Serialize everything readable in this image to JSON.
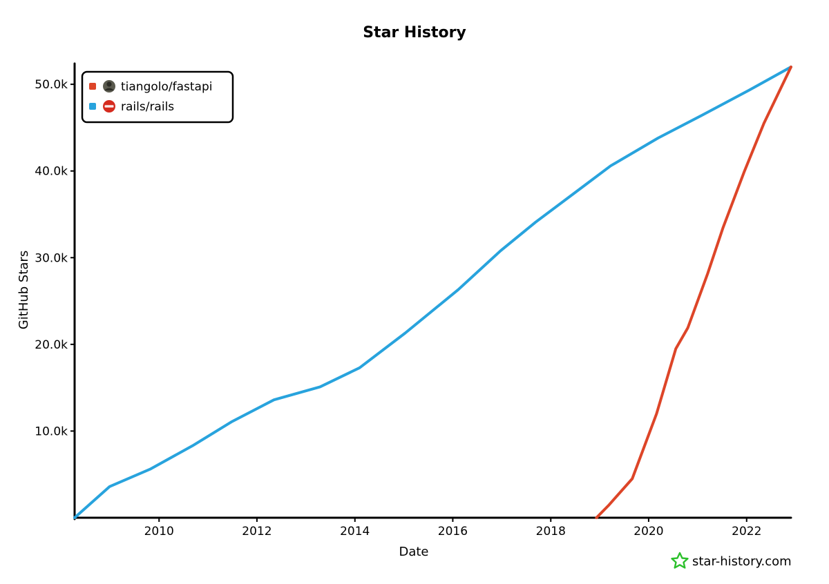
{
  "chart_data": {
    "type": "line",
    "title": "Star History",
    "xlabel": "Date",
    "ylabel": "GitHub Stars",
    "xlim": [
      "2008-04-11",
      "2022-11-28"
    ],
    "ylim": [
      0,
      52000
    ],
    "x_ticks": [
      "2010",
      "2012",
      "2014",
      "2016",
      "2018",
      "2020",
      "2022"
    ],
    "y_ticks": [
      "10.0k",
      "20.0k",
      "30.0k",
      "40.0k",
      "50.0k"
    ],
    "legend_position": "top-left",
    "grid": false,
    "series": [
      {
        "name": "tiangolo/fastapi",
        "color": "#dd4528",
        "icon": "avatar-icon",
        "points": [
          [
            "2018-12-08",
            0
          ],
          [
            "2019-03-07",
            1400
          ],
          [
            "2019-09-01",
            4500
          ],
          [
            "2020-02-29",
            12000
          ],
          [
            "2020-07-22",
            19500
          ],
          [
            "2020-10-19",
            21900
          ],
          [
            "2021-03-17",
            28200
          ],
          [
            "2021-07-10",
            33500
          ],
          [
            "2021-12-16",
            40000
          ],
          [
            "2022-05-10",
            45500
          ],
          [
            "2022-11-28",
            52000
          ]
        ]
      },
      {
        "name": "rails/rails",
        "color": "#28a3dd",
        "icon": "rails-logo-icon",
        "points": [
          [
            "2008-04-11",
            0
          ],
          [
            "2008-12-29",
            3600
          ],
          [
            "2009-10-26",
            5600
          ],
          [
            "2010-09-07",
            8300
          ],
          [
            "2011-06-30",
            11100
          ],
          [
            "2012-05-07",
            13600
          ],
          [
            "2013-04-16",
            15100
          ],
          [
            "2014-02-05",
            17300
          ],
          [
            "2015-01-11",
            21300
          ],
          [
            "2016-02-10",
            26300
          ],
          [
            "2016-12-23",
            30800
          ],
          [
            "2017-09-10",
            34100
          ],
          [
            "2018-06-30",
            37500
          ],
          [
            "2019-03-24",
            40600
          ],
          [
            "2020-03-11",
            43800
          ],
          [
            "2021-02-10",
            46500
          ],
          [
            "2022-01-17",
            49300
          ],
          [
            "2022-11-28",
            52000
          ]
        ]
      }
    ]
  },
  "watermark": {
    "text": "star-history.com",
    "icon": "star-logo-icon",
    "color": "#2cc02c"
  }
}
